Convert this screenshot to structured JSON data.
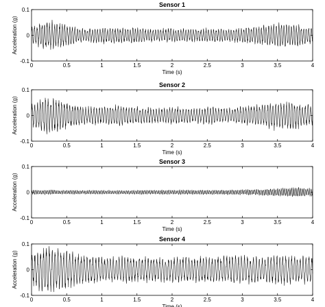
{
  "chart_data": [
    {
      "type": "line",
      "title": "Sensor 1",
      "xlabel": "Time (s)",
      "ylabel": "Acceleration (g)",
      "xlim": [
        0,
        4
      ],
      "ylim": [
        -0.1,
        0.1
      ],
      "xticks": [
        "0",
        "0.5",
        "1",
        "1.5",
        "2",
        "2.5",
        "3",
        "3.5",
        "4"
      ],
      "yticks": [
        "0.1",
        "0",
        "-0.1"
      ],
      "grid": false,
      "series": [
        {
          "amplitude_envelope": [
            [
              0,
              0.035
            ],
            [
              0.1,
              0.045
            ],
            [
              0.2,
              0.06
            ],
            [
              0.35,
              0.055
            ],
            [
              0.5,
              0.04
            ],
            [
              0.8,
              0.025
            ],
            [
              1.0,
              0.035
            ],
            [
              1.2,
              0.03
            ],
            [
              1.5,
              0.03
            ],
            [
              1.8,
              0.025
            ],
            [
              2.0,
              0.03
            ],
            [
              2.3,
              0.025
            ],
            [
              2.5,
              0.028
            ],
            [
              2.8,
              0.025
            ],
            [
              3.0,
              0.03
            ],
            [
              3.3,
              0.04
            ],
            [
              3.5,
              0.05
            ],
            [
              3.7,
              0.045
            ],
            [
              4.0,
              0.035
            ]
          ],
          "frequency_hz": 28
        }
      ]
    },
    {
      "type": "line",
      "title": "Sensor 2",
      "xlabel": "Time (s)",
      "ylabel": "Acceleration (g)",
      "xlim": [
        0,
        4
      ],
      "ylim": [
        -0.1,
        0.1
      ],
      "xticks": [
        "0",
        "0.5",
        "1",
        "1.5",
        "2",
        "2.5",
        "3",
        "3.5",
        "4"
      ],
      "yticks": [
        "0.1",
        "0",
        "-0.1"
      ],
      "grid": false,
      "series": [
        {
          "amplitude_envelope": [
            [
              0,
              0.04
            ],
            [
              0.1,
              0.06
            ],
            [
              0.2,
              0.075
            ],
            [
              0.35,
              0.07
            ],
            [
              0.5,
              0.05
            ],
            [
              0.8,
              0.035
            ],
            [
              1.0,
              0.04
            ],
            [
              1.2,
              0.04
            ],
            [
              1.5,
              0.035
            ],
            [
              1.8,
              0.03
            ],
            [
              2.0,
              0.035
            ],
            [
              2.3,
              0.03
            ],
            [
              2.5,
              0.035
            ],
            [
              2.8,
              0.03
            ],
            [
              3.0,
              0.035
            ],
            [
              3.3,
              0.045
            ],
            [
              3.5,
              0.06
            ],
            [
              3.7,
              0.055
            ],
            [
              4.0,
              0.04
            ]
          ],
          "frequency_hz": 26
        }
      ]
    },
    {
      "type": "line",
      "title": "Sensor 3",
      "xlabel": "Time (s)",
      "ylabel": "Acceleration (g)",
      "xlim": [
        0,
        4
      ],
      "ylim": [
        -0.1,
        0.1
      ],
      "xticks": [
        "0",
        "0.5",
        "1",
        "1.5",
        "2",
        "2.5",
        "3",
        "3.5",
        "4"
      ],
      "yticks": [
        "0.1",
        "0",
        "-0.1"
      ],
      "grid": false,
      "series": [
        {
          "amplitude_envelope": [
            [
              0,
              0.01
            ],
            [
              0.5,
              0.008
            ],
            [
              1.0,
              0.008
            ],
            [
              1.5,
              0.008
            ],
            [
              2.0,
              0.009
            ],
            [
              2.5,
              0.009
            ],
            [
              3.0,
              0.01
            ],
            [
              3.5,
              0.015
            ],
            [
              3.8,
              0.02
            ],
            [
              4.0,
              0.015
            ]
          ],
          "frequency_hz": 40
        }
      ]
    },
    {
      "type": "line",
      "title": "Sensor 4",
      "xlabel": "Time (s)",
      "ylabel": "Acceleration (g)",
      "xlim": [
        0,
        4
      ],
      "ylim": [
        -0.1,
        0.1
      ],
      "xticks": [
        "0",
        "0.5",
        "1",
        "1.5",
        "2",
        "2.5",
        "3",
        "3.5",
        "4"
      ],
      "yticks": [
        "0.1",
        "0",
        "-0.1"
      ],
      "grid": false,
      "series": [
        {
          "amplitude_envelope": [
            [
              0,
              0.06
            ],
            [
              0.1,
              0.08
            ],
            [
              0.2,
              0.095
            ],
            [
              0.35,
              0.09
            ],
            [
              0.5,
              0.08
            ],
            [
              0.7,
              0.06
            ],
            [
              1.0,
              0.05
            ],
            [
              1.3,
              0.055
            ],
            [
              1.5,
              0.05
            ],
            [
              2.0,
              0.05
            ],
            [
              2.5,
              0.055
            ],
            [
              3.0,
              0.055
            ],
            [
              3.3,
              0.05
            ],
            [
              3.6,
              0.06
            ],
            [
              4.0,
              0.055
            ]
          ],
          "frequency_hz": 24
        }
      ]
    }
  ]
}
